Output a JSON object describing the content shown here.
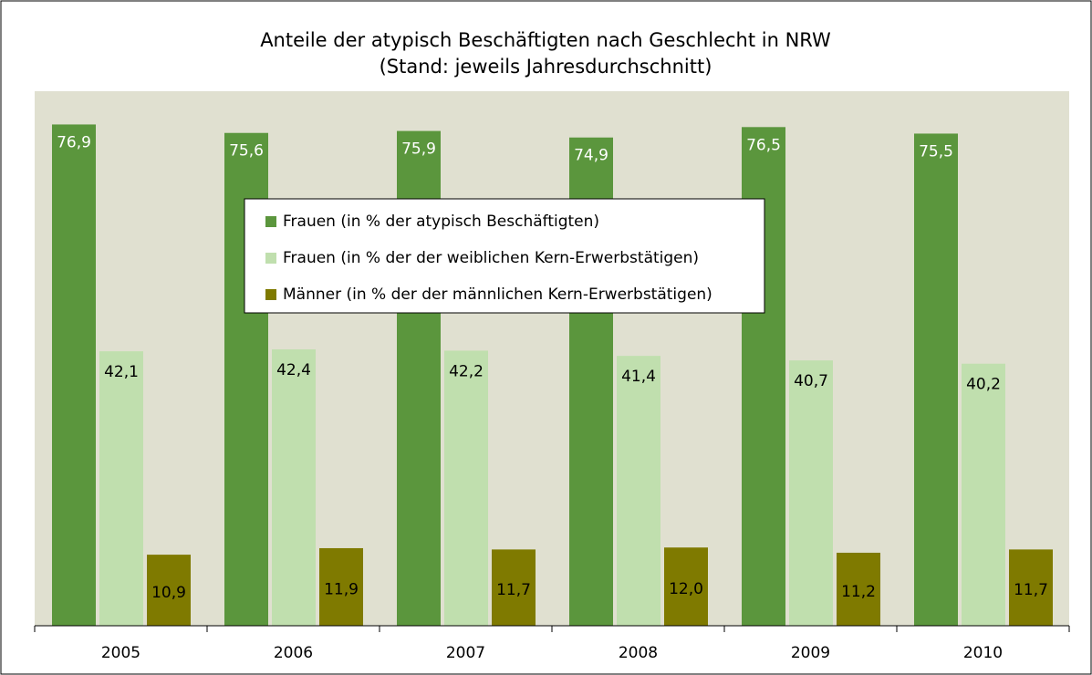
{
  "chart_data": {
    "type": "bar",
    "title": "Anteile der atypisch Beschäftigten nach Geschlecht in NRW",
    "subtitle": "(Stand: jeweils Jahresdurchschnitt)",
    "categories": [
      "2005",
      "2006",
      "2007",
      "2008",
      "2009",
      "2010"
    ],
    "ylim": [
      0,
      82
    ],
    "legend": "center",
    "series": [
      {
        "name": "Frauen (in % der atypisch Beschäftigten)",
        "color": "#5b963d",
        "values": [
          76.9,
          75.6,
          75.9,
          74.9,
          76.5,
          75.5
        ],
        "value_labels": [
          "76,9",
          "75,6",
          "75,9",
          "74,9",
          "76,5",
          "75,5"
        ]
      },
      {
        "name": "Frauen (in % der der weiblichen Kern-Erwerbstätigen)",
        "color": "#c0dfae",
        "values": [
          42.1,
          42.4,
          42.2,
          41.4,
          40.7,
          40.2
        ],
        "value_labels": [
          "42,1",
          "42,4",
          "42,2",
          "41,4",
          "40,7",
          "40,2"
        ]
      },
      {
        "name": "Männer (in % der der männlichen Kern-Erwerbstätigen)",
        "color": "#7f7a00",
        "values": [
          10.9,
          11.9,
          11.7,
          12.0,
          11.2,
          11.7
        ],
        "value_labels": [
          "10,9",
          "11,9",
          "11,7",
          "12,0",
          "11,2",
          "11,7"
        ]
      }
    ]
  }
}
